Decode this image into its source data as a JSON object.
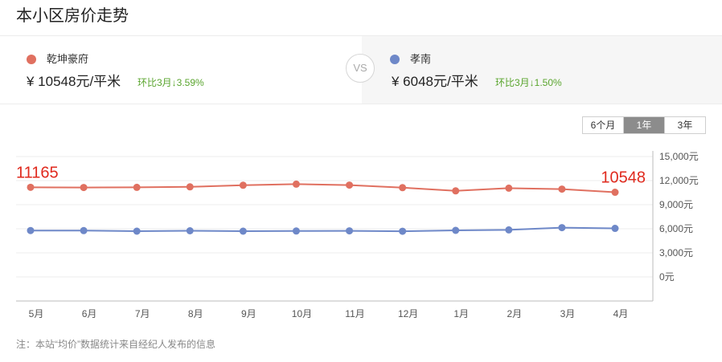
{
  "page": {
    "title": "本小区房价走势"
  },
  "compare": {
    "left": {
      "name": "乾坤豪府",
      "price": "¥ 10548元/平米",
      "change": "环比3月↓3.59%",
      "color": "#e07060"
    },
    "vs_label": "VS",
    "right": {
      "name": "孝南",
      "price": "¥ 6048元/平米",
      "change": "环比3月↓1.50%",
      "color": "#6e88c8"
    }
  },
  "range_tabs": [
    {
      "label": "6个月",
      "active": false
    },
    {
      "label": "1年",
      "active": true
    },
    {
      "label": "3年",
      "active": false
    }
  ],
  "chart_data": {
    "type": "line",
    "categories": [
      "5月",
      "6月",
      "7月",
      "8月",
      "9月",
      "10月",
      "11月",
      "12月",
      "1月",
      "2月",
      "3月",
      "4月"
    ],
    "series": [
      {
        "name": "乾坤豪府",
        "color": "#e07060",
        "values": [
          11165,
          11140,
          11160,
          11220,
          11420,
          11560,
          11440,
          11120,
          10720,
          11060,
          10940,
          10548
        ]
      },
      {
        "name": "孝南",
        "color": "#6e88c8",
        "values": [
          5780,
          5770,
          5700,
          5750,
          5700,
          5720,
          5740,
          5690,
          5800,
          5860,
          6140,
          6048
        ]
      }
    ],
    "yticks": [
      "15,000元",
      "12,000元",
      "9,000元",
      "6,000元",
      "3,000元",
      "0元"
    ],
    "ylim": [
      0,
      15000
    ],
    "annotations": [
      {
        "category": "5月",
        "text": "11165",
        "color": "#e02a1e"
      },
      {
        "category": "4月",
        "text": "10548",
        "color": "#e02a1e"
      }
    ],
    "grid": true,
    "xlabel": "",
    "ylabel": ""
  },
  "footnote": "注：本站“均价”数据统计来自经纪人发布的信息"
}
